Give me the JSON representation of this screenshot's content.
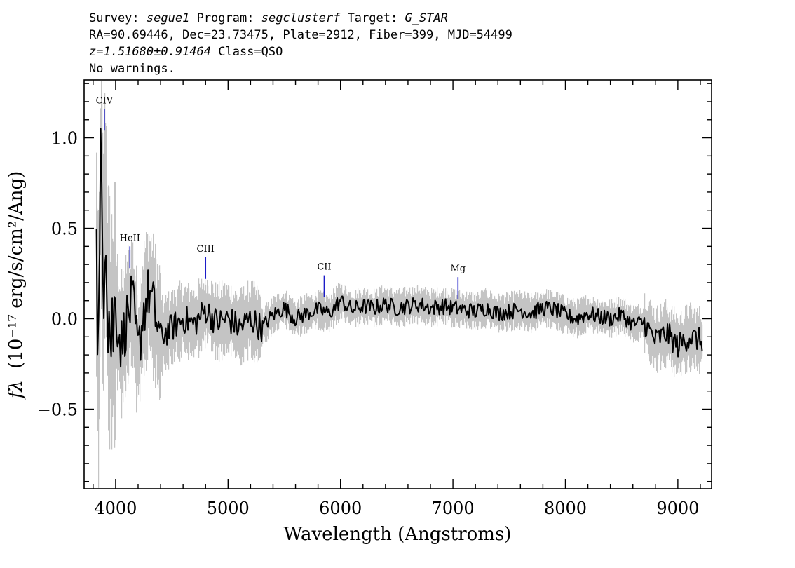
{
  "header": {
    "survey_label": "Survey:",
    "survey": "segue1",
    "program_label": "Program:",
    "program": "segclusterf",
    "target_label": "Target:",
    "target": "G_STAR",
    "line2": "RA=90.69446, Dec=23.73475, Plate=2912, Fiber=399, MJD=54499",
    "redshift": "z=1.51680±0.91464",
    "class": "Class=QSO",
    "warnings": "No warnings."
  },
  "chart_data": {
    "type": "line",
    "xlabel": "Wavelength (Angstroms)",
    "ylabel_prefix": "fλ",
    "ylabel": "(10⁻¹⁷ erg/s/cm²/Ang)",
    "xlim": [
      3720,
      9300
    ],
    "ylim": [
      -0.94,
      1.32
    ],
    "x_ticks": [
      4000,
      5000,
      6000,
      7000,
      8000,
      9000
    ],
    "x_tick_labels": [
      "4000",
      "5000",
      "6000",
      "7000",
      "8000",
      "9000"
    ],
    "y_ticks": [
      -0.5,
      0.0,
      0.5,
      1.0
    ],
    "y_tick_labels": [
      "−0.5",
      "0.0",
      "0.5",
      "1.0"
    ],
    "grid": false,
    "colors": {
      "flux": "#000000",
      "error_band": "#c4c4c4",
      "line_marker": "#1c1cc8"
    },
    "series": [
      {
        "role": "flux",
        "x": [
          3830,
          3850,
          3870,
          3890,
          3910,
          3930,
          3960,
          4000,
          4050,
          4100,
          4150,
          4200,
          4250,
          4300,
          4400,
          4500,
          4600,
          4700,
          4800,
          4900,
          5000,
          5100,
          5200,
          5300,
          5400,
          5500,
          5600,
          5700,
          5800,
          5900,
          6000,
          6100,
          6200,
          6300,
          6400,
          6500,
          6600,
          6700,
          6800,
          6900,
          7000,
          7100,
          7200,
          7300,
          7400,
          7500,
          7600,
          7700,
          7800,
          7900,
          8000,
          8100,
          8200,
          8300,
          8400,
          8500,
          8600,
          8700,
          8800,
          8900,
          9000,
          9100,
          9200
        ],
        "y": [
          0.3,
          -0.2,
          0.9,
          0.2,
          0.7,
          0.1,
          -0.1,
          0.05,
          -0.15,
          0.0,
          0.1,
          -0.2,
          0.05,
          0.15,
          -0.1,
          -0.05,
          0.0,
          -0.03,
          0.05,
          -0.02,
          0.0,
          -0.05,
          0.0,
          -0.05,
          0.02,
          0.06,
          0.0,
          0.03,
          0.05,
          0.03,
          0.1,
          0.05,
          0.07,
          0.06,
          0.08,
          0.06,
          0.07,
          0.08,
          0.06,
          0.07,
          0.06,
          0.05,
          0.04,
          0.06,
          0.03,
          0.04,
          0.05,
          0.03,
          0.06,
          0.05,
          0.02,
          0.0,
          0.03,
          0.01,
          0.0,
          0.02,
          -0.03,
          -0.02,
          -0.12,
          -0.08,
          -0.15,
          -0.1,
          -0.12
        ]
      }
    ],
    "emission_lines": [
      {
        "name": "CIV",
        "wavelength": 3900,
        "top": 1.16,
        "bottom": 1.04
      },
      {
        "name": "HeII",
        "wavelength": 4127,
        "top": 0.4,
        "bottom": 0.28
      },
      {
        "name": "CIII",
        "wavelength": 4800,
        "top": 0.34,
        "bottom": 0.22
      },
      {
        "name": "CII",
        "wavelength": 5855,
        "top": 0.24,
        "bottom": 0.12
      },
      {
        "name": "Mg",
        "wavelength": 7045,
        "top": 0.23,
        "bottom": 0.11
      }
    ]
  }
}
